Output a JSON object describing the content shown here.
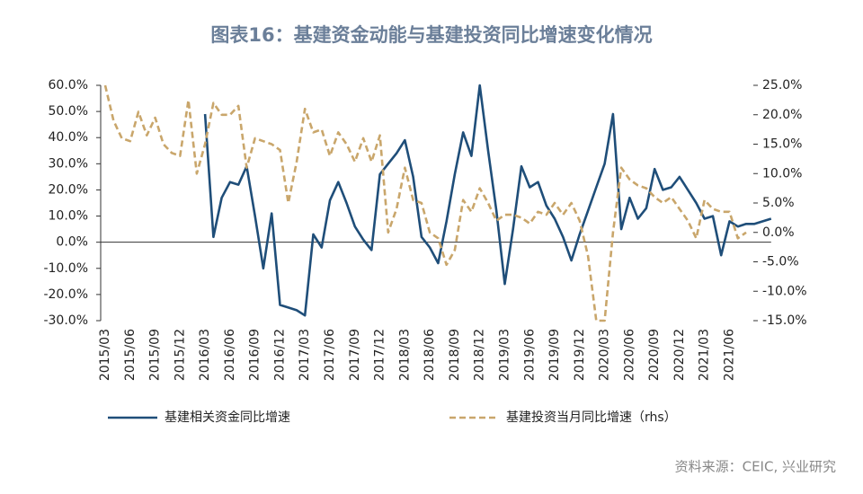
{
  "chart_data": {
    "type": "line",
    "title": "图表16：基建资金动能与基建投资同比增速变化情况",
    "source": "资料来源：CEIC, 兴业研究",
    "categories": [
      "2015/03",
      null,
      null,
      "2015/06",
      null,
      null,
      "2015/09",
      null,
      null,
      "2015/12",
      null,
      null,
      "2016/03",
      null,
      null,
      "2016/06",
      null,
      null,
      "2016/09",
      null,
      null,
      "2016/12",
      null,
      null,
      "2017/03",
      null,
      null,
      "2017/06",
      null,
      null,
      "2017/09",
      null,
      null,
      "2017/12",
      null,
      null,
      "2018/03",
      null,
      null,
      "2018/06",
      null,
      null,
      "2018/09",
      null,
      null,
      "2018/12",
      null,
      null,
      "2019/03",
      null,
      null,
      "2019/06",
      null,
      null,
      "2019/09",
      null,
      null,
      "2019/12",
      null,
      null,
      "2020/03",
      null,
      null,
      "2020/06",
      null,
      null,
      "2020/09",
      null,
      null,
      "2020/12",
      null,
      null,
      "2021/03",
      null,
      null,
      "2021/06",
      null,
      null,
      null,
      null,
      null
    ],
    "series": [
      {
        "name": "基建相关资金同比增速",
        "color": "#1f4e79",
        "axis": "y",
        "values": [
          null,
          null,
          null,
          null,
          null,
          null,
          null,
          null,
          null,
          null,
          null,
          null,
          49,
          2,
          17,
          23,
          22,
          29,
          10,
          -10,
          11,
          -24,
          -25,
          -26,
          -28,
          3,
          -2,
          16,
          23,
          15,
          6,
          1,
          -3,
          26,
          30,
          34,
          39,
          25,
          2,
          -2,
          -8,
          8,
          26,
          42,
          33,
          60,
          35,
          12,
          -16,
          5,
          29,
          21,
          23,
          14,
          9,
          2,
          -7,
          3,
          12,
          21,
          30,
          49,
          5,
          17,
          9,
          13,
          28,
          20,
          21,
          25,
          20,
          15,
          9,
          10,
          -5,
          8,
          6,
          7,
          7,
          8,
          9
        ]
      },
      {
        "name": "基建投资当月同比增速（rhs）",
        "color": "#c9a66b",
        "axis": "y2",
        "values": [
          25,
          19,
          16,
          15.5,
          20.5,
          16.5,
          19.5,
          15,
          13.5,
          13,
          22.5,
          10,
          15,
          22,
          20,
          20,
          21.5,
          11,
          16,
          15.5,
          15,
          14,
          5,
          12,
          21,
          17,
          17.5,
          13,
          17,
          15,
          12,
          16,
          12,
          16.5,
          0,
          4,
          11,
          5.5,
          5,
          0,
          -1,
          -5.5,
          -3,
          5.5,
          3.5,
          7.5,
          5,
          2,
          3,
          3,
          2.5,
          1.5,
          3.5,
          3,
          5,
          3,
          5,
          2,
          -4,
          -15,
          -15,
          0,
          11,
          9,
          8,
          7.5,
          6,
          5,
          6,
          4,
          2,
          -1,
          5.5,
          4,
          3.5,
          3.5,
          -1,
          0,
          null,
          null,
          null
        ]
      }
    ],
    "ylim": [
      -30,
      60
    ],
    "yticks": [
      {
        "value": 60,
        "label": "60.0%"
      },
      {
        "value": 50,
        "label": "50.0%"
      },
      {
        "value": 40,
        "label": "40.0%"
      },
      {
        "value": 30,
        "label": "30.0%"
      },
      {
        "value": 20,
        "label": "20.0%"
      },
      {
        "value": 10,
        "label": "10.0%"
      },
      {
        "value": 0,
        "label": "0.0%"
      },
      {
        "value": -10,
        "label": "-10.0%"
      },
      {
        "value": -20,
        "label": "-20.0%"
      },
      {
        "value": -30,
        "label": "-30.0%"
      }
    ],
    "y2lim": [
      -15,
      25
    ],
    "y2ticks": [
      {
        "value": 25,
        "label": "25.0%"
      },
      {
        "value": 20,
        "label": "20.0%"
      },
      {
        "value": 15,
        "label": "15.0%"
      },
      {
        "value": 10,
        "label": "10.0%"
      },
      {
        "value": 5,
        "label": "5.0%"
      },
      {
        "value": 0,
        "label": "0.0%"
      },
      {
        "value": -5,
        "label": "-5.0%"
      },
      {
        "value": -10,
        "label": "-10.0%"
      },
      {
        "value": -15,
        "label": "-15.0%"
      }
    ],
    "grid": false,
    "legend": "bottom"
  }
}
